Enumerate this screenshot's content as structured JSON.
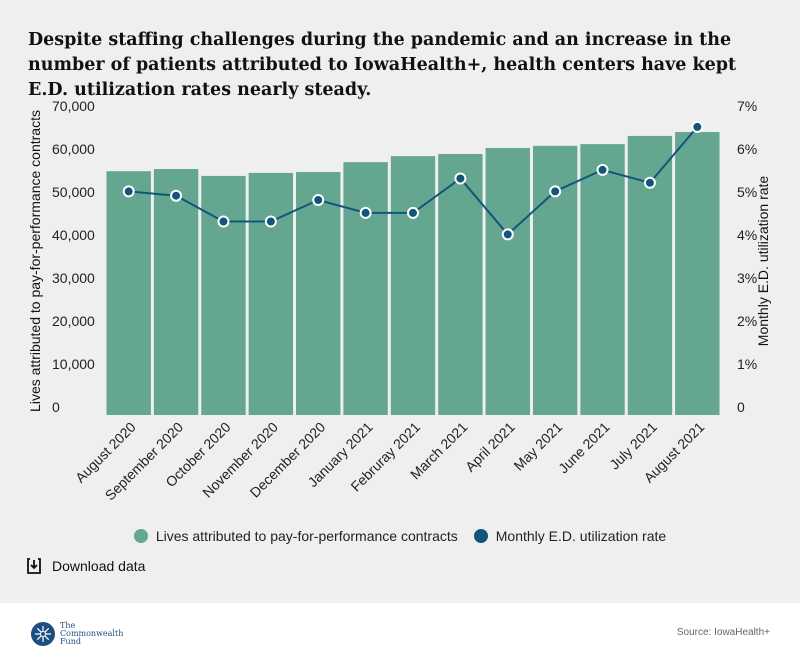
{
  "title": "Despite staffing challenges during the pandemic and an increase in the number of patients attributed to IowaHealth+, health centers have kept E.D. utilization rates nearly steady.",
  "chart_data": {
    "type": "bar+line",
    "categories": [
      "August 2020",
      "September 2020",
      "October 2020",
      "November 2020",
      "December 2020",
      "January 2021",
      "Februray 2021",
      "March 2021",
      "April 2021",
      "May 2021",
      "June 2021",
      "July 2021",
      "August 2021"
    ],
    "series": [
      {
        "name": "Lives attributed to pay-for-performance contracts",
        "type": "bar",
        "axis": "left",
        "color": "#64a690",
        "values": [
          56700,
          57200,
          55600,
          56300,
          56500,
          58800,
          60200,
          60700,
          62100,
          62600,
          63000,
          64900,
          65800
        ]
      },
      {
        "name": "Monthly E.D. utilization rate",
        "type": "line",
        "axis": "right",
        "color": "#12557a",
        "values": [
          5.2,
          5.1,
          4.5,
          4.5,
          5.0,
          4.7,
          4.7,
          5.5,
          4.2,
          5.2,
          5.7,
          5.4,
          6.7
        ]
      }
    ],
    "ylabel": "Lives attributed to pay-for-performance contracts",
    "y2label": "Monthly E.D. utilization rate",
    "ylim": [
      0,
      70000
    ],
    "y2lim": [
      0,
      7
    ],
    "yticks": [
      "0",
      "10,000",
      "20,000",
      "30,000",
      "40,000",
      "50,000",
      "60,000",
      "70,000"
    ],
    "y2ticks": [
      "0",
      "1%",
      "2%",
      "3%",
      "4%",
      "5%",
      "6%",
      "7%"
    ],
    "grid": false,
    "legend": "bottom"
  },
  "download_label": "Download data",
  "logo_text": "The\nCommonwealth\nFund",
  "source": "Source: IowaHealth+"
}
